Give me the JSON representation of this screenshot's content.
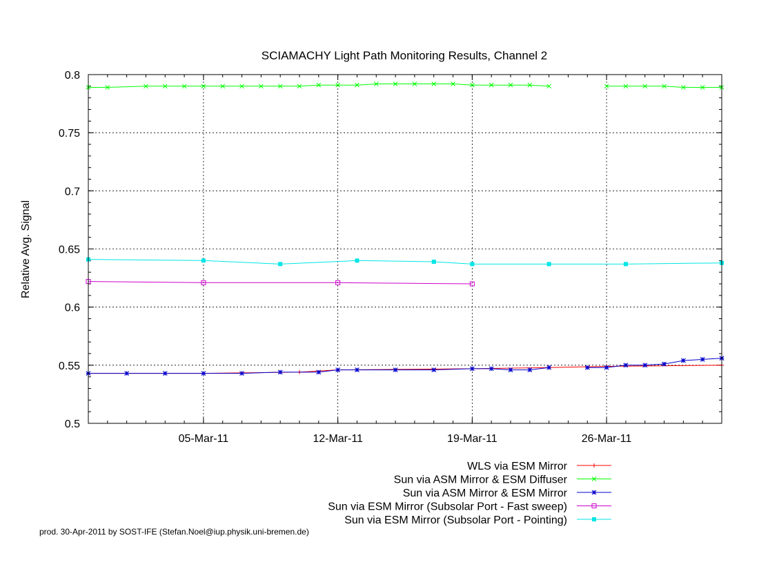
{
  "chart_data": {
    "type": "line",
    "title": "SCIAMACHY Light Path Monitoring Results, Channel 2",
    "xlabel": "",
    "ylabel": "Relative Avg. Signal",
    "x_range": [
      "2011-02-27",
      "2011-04-01"
    ],
    "ylim": [
      0.5,
      0.8
    ],
    "yticks": [
      0.5,
      0.55,
      0.6,
      0.65,
      0.7,
      0.75,
      0.8
    ],
    "ytick_labels": [
      "0.5",
      "0.55",
      "0.6",
      "0.65",
      "0.7",
      "0.75",
      "0.8"
    ],
    "xticks": [
      "2011-03-05",
      "2011-03-12",
      "2011-03-19",
      "2011-03-26"
    ],
    "xtick_labels": [
      "05-Mar-11",
      "12-Mar-11",
      "19-Mar-11",
      "26-Mar-11"
    ],
    "grid": true,
    "legend_position": "bottom-right, below plot",
    "series": [
      {
        "name": "WLS via ESM Mirror",
        "color": "#ff0000",
        "marker": "plus",
        "x": [
          "2011-02-27",
          "2011-03-05",
          "2011-03-10",
          "2011-03-12",
          "2011-03-19",
          "2011-03-23",
          "2011-03-26",
          "2011-04-01"
        ],
        "y": [
          0.543,
          0.543,
          0.544,
          0.546,
          0.547,
          0.548,
          0.549,
          0.55
        ]
      },
      {
        "name": "Sun via ASM Mirror & ESM Diffuser",
        "color": "#00ff00",
        "marker": "x",
        "x": [
          "2011-02-27",
          "2011-02-28",
          "2011-03-02",
          "2011-03-03",
          "2011-03-04",
          "2011-03-05",
          "2011-03-06",
          "2011-03-07",
          "2011-03-08",
          "2011-03-09",
          "2011-03-10",
          "2011-03-11",
          "2011-03-12",
          "2011-03-13",
          "2011-03-14",
          "2011-03-15",
          "2011-03-16",
          "2011-03-17",
          "2011-03-18",
          "2011-03-19",
          "2011-03-20",
          "2011-03-21",
          "2011-03-22",
          "2011-03-23",
          null,
          "2011-03-26",
          "2011-03-27",
          "2011-03-28",
          "2011-03-29",
          "2011-03-30",
          "2011-03-31",
          "2011-04-01"
        ],
        "y": [
          0.789,
          0.789,
          0.79,
          0.79,
          0.79,
          0.79,
          0.79,
          0.79,
          0.79,
          0.79,
          0.79,
          0.791,
          0.791,
          0.791,
          0.792,
          0.792,
          0.792,
          0.792,
          0.792,
          0.791,
          0.791,
          0.791,
          0.791,
          0.79,
          null,
          0.79,
          0.79,
          0.79,
          0.79,
          0.789,
          0.789,
          0.789
        ]
      },
      {
        "name": "Sun via ASM Mirror & ESM Mirror",
        "color": "#0000cc",
        "marker": "star",
        "x": [
          "2011-02-27",
          "2011-03-01",
          "2011-03-03",
          "2011-03-05",
          "2011-03-07",
          "2011-03-09",
          "2011-03-11",
          "2011-03-12",
          "2011-03-13",
          "2011-03-15",
          "2011-03-17",
          "2011-03-19",
          "2011-03-20",
          "2011-03-21",
          "2011-03-22",
          "2011-03-23",
          null,
          "2011-03-25",
          "2011-03-26",
          "2011-03-27",
          "2011-03-28",
          "2011-03-29",
          "2011-03-30",
          "2011-03-31",
          "2011-04-01"
        ],
        "y": [
          0.543,
          0.543,
          0.543,
          0.543,
          0.543,
          0.544,
          0.544,
          0.546,
          0.546,
          0.546,
          0.546,
          0.547,
          0.547,
          0.546,
          0.546,
          0.548,
          null,
          0.548,
          0.548,
          0.55,
          0.55,
          0.551,
          0.554,
          0.555,
          0.556
        ]
      },
      {
        "name": "Sun via ESM Mirror (Subsolar Port - Fast sweep)",
        "color": "#cc00cc",
        "marker": "square",
        "x": [
          "2011-02-27",
          "2011-03-05",
          "2011-03-12",
          "2011-03-19"
        ],
        "y": [
          0.622,
          0.621,
          0.621,
          0.62
        ]
      },
      {
        "name": "Sun via ESM Mirror (Subsolar Port - Pointing)",
        "color": "#00e5e5",
        "marker": "filled-square",
        "x": [
          "2011-02-27",
          "2011-03-05",
          "2011-03-09",
          "2011-03-13",
          "2011-03-17",
          "2011-03-19",
          "2011-03-23",
          "2011-03-27",
          "2011-04-01"
        ],
        "y": [
          0.641,
          0.64,
          0.637,
          0.64,
          0.639,
          0.637,
          0.637,
          0.637,
          0.638
        ]
      }
    ]
  },
  "footer": "prod. 30-Apr-2011 by SOST-IFE (Stefan.Noel@iup.physik.uni-bremen.de)"
}
